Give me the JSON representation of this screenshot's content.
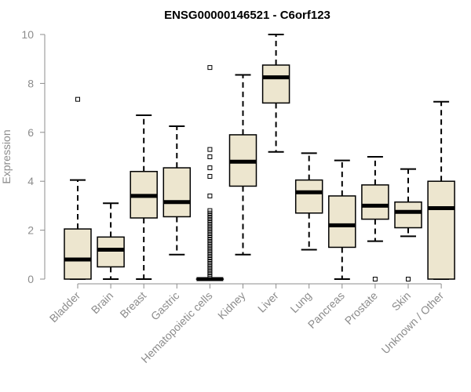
{
  "chart_data": {
    "type": "boxplot",
    "title": "ENSG00000146521 - C6orf123",
    "xlabel": "",
    "ylabel": "Expression",
    "ylim": [
      0,
      10
    ],
    "yticks": [
      0,
      2,
      4,
      6,
      8,
      10
    ],
    "box_fill": "#ede6cf",
    "categories": [
      "Bladder",
      "Brain",
      "Breast",
      "Gastric",
      "Hematopoietic cells",
      "Kidney",
      "Liver",
      "Lung",
      "Pancreas",
      "Prostate",
      "Skin",
      "Unknown / Other"
    ],
    "series": [
      {
        "category": "Bladder",
        "min": 0,
        "q1": 0,
        "median": 0.8,
        "q3": 2.05,
        "max": 4.05,
        "outliers": [
          7.35
        ]
      },
      {
        "category": "Brain",
        "min": 0,
        "q1": 0.5,
        "median": 1.2,
        "q3": 1.72,
        "max": 3.1,
        "outliers": []
      },
      {
        "category": "Breast",
        "min": 0,
        "q1": 2.5,
        "median": 3.4,
        "q3": 4.4,
        "max": 6.7,
        "outliers": []
      },
      {
        "category": "Gastric",
        "min": 1.0,
        "q1": 2.55,
        "median": 3.15,
        "q3": 4.55,
        "max": 6.25,
        "outliers": []
      },
      {
        "category": "Hematopoietic cells",
        "min": 0,
        "q1": 0,
        "median": 0,
        "q3": 0,
        "max": 0,
        "outliers": [
          8.65,
          5.3,
          5.0,
          4.55,
          4.2,
          3.4,
          2.8,
          2.7,
          2.6,
          2.5,
          2.4,
          2.3,
          2.2,
          2.1,
          2.0,
          1.9,
          1.8,
          1.7,
          1.6,
          1.5,
          1.4,
          1.3,
          1.2,
          1.1,
          1.0,
          0.9,
          0.8,
          0.7,
          0.6,
          0.5,
          0.4,
          0.3,
          0.2,
          0.1
        ]
      },
      {
        "category": "Kidney",
        "min": 1.0,
        "q1": 3.8,
        "median": 4.8,
        "q3": 5.9,
        "max": 8.35,
        "outliers": []
      },
      {
        "category": "Liver",
        "min": 5.2,
        "q1": 7.2,
        "median": 8.25,
        "q3": 8.75,
        "max": 10.0,
        "outliers": []
      },
      {
        "category": "Lung",
        "min": 1.2,
        "q1": 2.7,
        "median": 3.55,
        "q3": 4.05,
        "max": 5.15,
        "outliers": []
      },
      {
        "category": "Pancreas",
        "min": 0,
        "q1": 1.3,
        "median": 2.2,
        "q3": 3.4,
        "max": 4.85,
        "outliers": []
      },
      {
        "category": "Prostate",
        "min": 1.55,
        "q1": 2.45,
        "median": 3.0,
        "q3": 3.85,
        "max": 5.0,
        "outliers": [
          0
        ]
      },
      {
        "category": "Skin",
        "min": 1.75,
        "q1": 2.1,
        "median": 2.75,
        "q3": 3.15,
        "max": 4.5,
        "outliers": [
          0
        ]
      },
      {
        "category": "Unknown / Other",
        "min": 0,
        "q1": 0,
        "median": 2.9,
        "q3": 4.0,
        "max": 7.25,
        "outliers": []
      }
    ]
  }
}
